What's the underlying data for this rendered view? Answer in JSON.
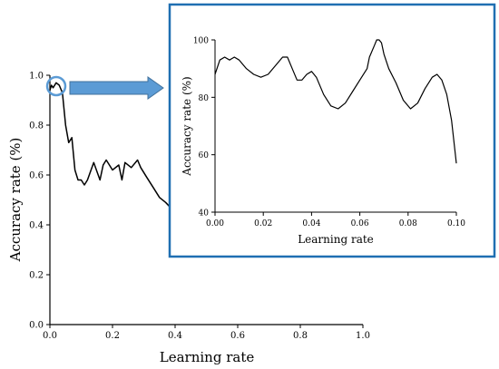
{
  "chart_data": [
    {
      "type": "line",
      "xlabel": "Learning rate",
      "ylabel": "Accuracy rate (%)",
      "xlim": [
        0.0,
        1.0
      ],
      "ylim": [
        0.0,
        1.0
      ],
      "xticks": [
        "0.0",
        "0.2",
        "0.4",
        "0.6",
        "0.8",
        "1.0"
      ],
      "yticks": [
        "0.0",
        "0.2",
        "0.4",
        "0.6",
        "0.8",
        "1.0"
      ],
      "grid": false,
      "series": [
        {
          "x": [
            0.0,
            0.005,
            0.01,
            0.02,
            0.03,
            0.04,
            0.05,
            0.06,
            0.07,
            0.08,
            0.09,
            0.1,
            0.11,
            0.12,
            0.14,
            0.16,
            0.17,
            0.18,
            0.2,
            0.22,
            0.23,
            0.24,
            0.26,
            0.28,
            0.29,
            0.31,
            0.33,
            0.35,
            0.37,
            0.385
          ],
          "y": [
            0.94,
            0.96,
            0.95,
            0.97,
            0.96,
            0.93,
            0.8,
            0.73,
            0.75,
            0.62,
            0.58,
            0.58,
            0.56,
            0.58,
            0.65,
            0.58,
            0.64,
            0.66,
            0.62,
            0.64,
            0.58,
            0.65,
            0.63,
            0.66,
            0.63,
            0.59,
            0.55,
            0.51,
            0.49,
            0.47
          ]
        }
      ]
    },
    {
      "type": "line",
      "xlabel": "Learning rate",
      "ylabel": "Accuracy rate (%)",
      "xlim": [
        0.0,
        0.1
      ],
      "ylim": [
        40,
        100
      ],
      "xticks": [
        "0.00",
        "0.02",
        "0.04",
        "0.06",
        "0.08",
        "0.10"
      ],
      "yticks": [
        "40",
        "60",
        "80",
        "100"
      ],
      "grid": false,
      "series": [
        {
          "x": [
            0.0,
            0.002,
            0.004,
            0.006,
            0.008,
            0.01,
            0.013,
            0.016,
            0.019,
            0.022,
            0.025,
            0.028,
            0.03,
            0.032,
            0.034,
            0.036,
            0.038,
            0.04,
            0.042,
            0.045,
            0.048,
            0.051,
            0.054,
            0.057,
            0.06,
            0.063,
            0.064,
            0.066,
            0.067,
            0.068,
            0.069,
            0.07,
            0.072,
            0.075,
            0.078,
            0.081,
            0.084,
            0.087,
            0.09,
            0.092,
            0.094,
            0.096,
            0.098,
            0.1
          ],
          "y": [
            88,
            93,
            94,
            93,
            94,
            93,
            90,
            88,
            87,
            88,
            91,
            94,
            94,
            90,
            86,
            86,
            88,
            89,
            87,
            81,
            77,
            76,
            78,
            82,
            86,
            90,
            94,
            98,
            100,
            100,
            99,
            95,
            90,
            85,
            79,
            76,
            78,
            83,
            87,
            88,
            86,
            81,
            72,
            57
          ]
        }
      ]
    }
  ],
  "colors": {
    "line": "#000000",
    "frame": "#1f6fb2",
    "arrow_fill": "#5b9bd5",
    "arrow_stroke": "#41719c",
    "circle": "#5b9bd5"
  }
}
